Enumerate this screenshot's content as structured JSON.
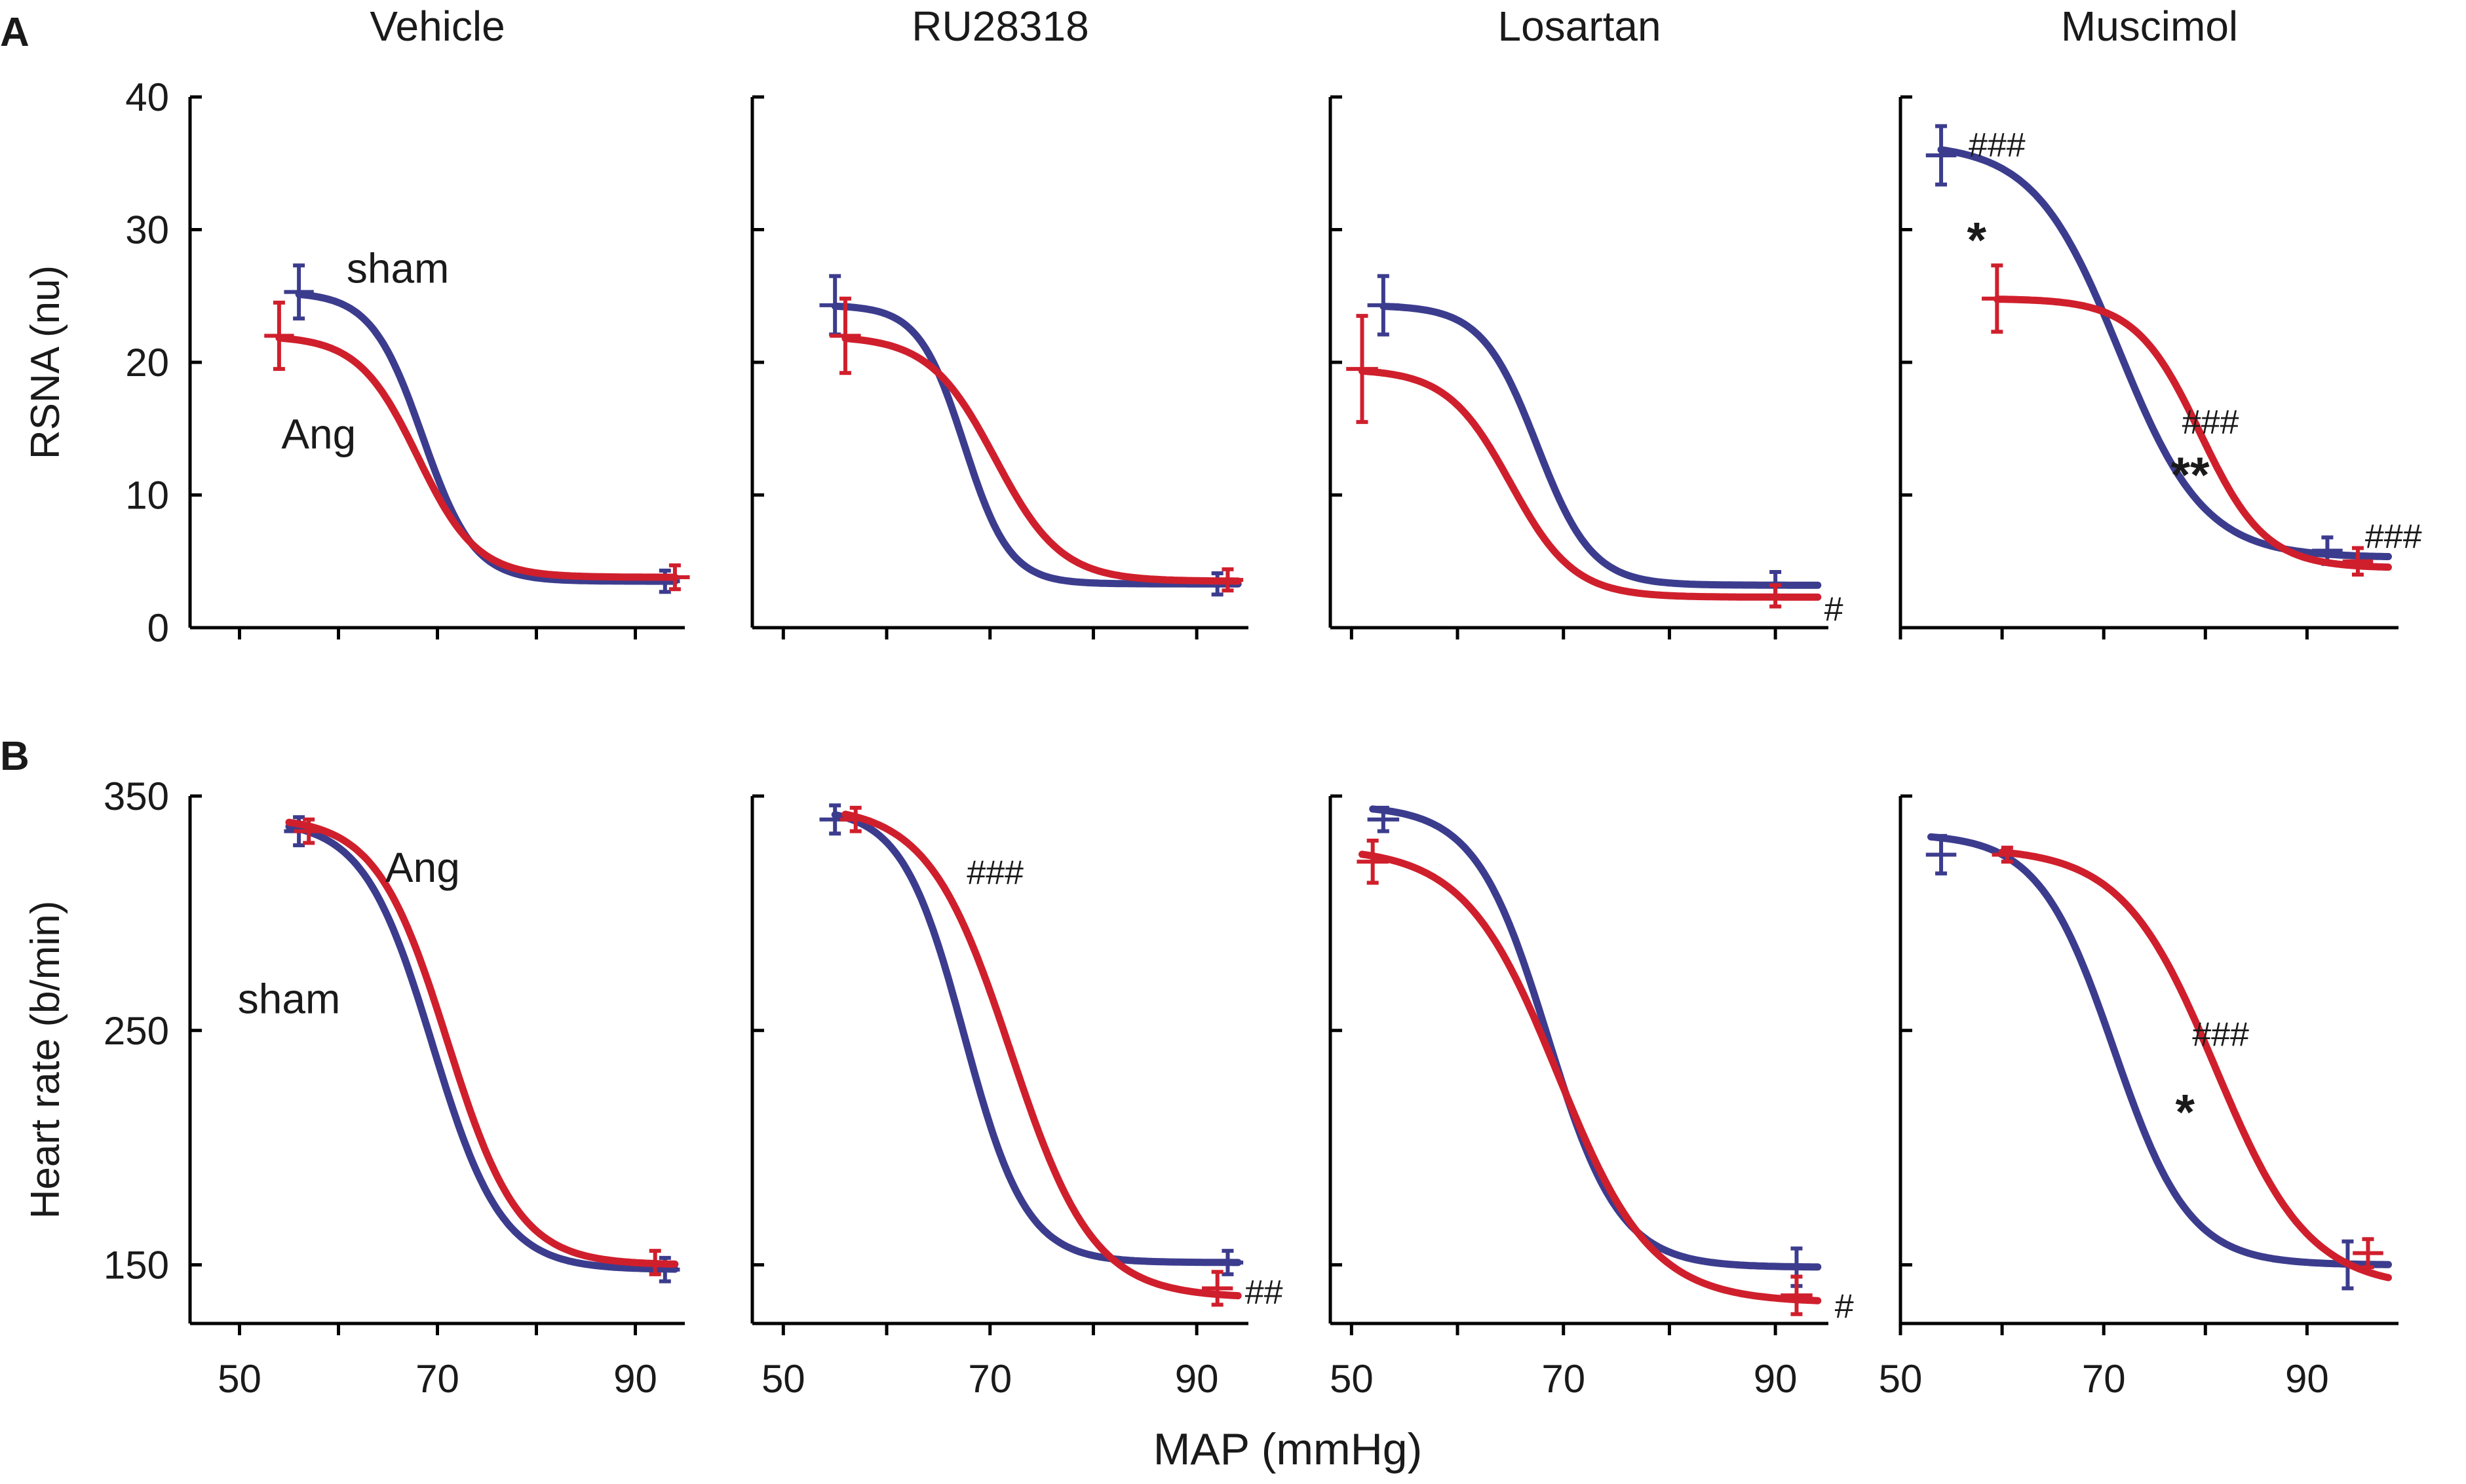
{
  "figure": {
    "x_axis_title": "MAP (mmHg)",
    "panel_letters": [
      "A",
      "B"
    ],
    "colors": {
      "sham": "#3c3c8e",
      "ang": "#d01f2c"
    }
  },
  "chart_data": [
    {
      "type": "line",
      "row": "A",
      "group": "Vehicle",
      "title": "Vehicle",
      "ylabel": "RSNA (nu)",
      "xlim": [
        45,
        95
      ],
      "ylim": [
        0,
        40
      ],
      "xticks": [
        50,
        70,
        90
      ],
      "xtick_minor": [
        60,
        80
      ],
      "yticks": [
        0,
        10,
        20,
        30,
        40
      ],
      "series": [
        {
          "name": "sham",
          "color": "#3c3c8e",
          "logistic": {
            "top": 25.3,
            "bottom": 3.5,
            "x50": 68.5,
            "slope": 2.6
          },
          "x_range": [
            56,
            94
          ],
          "points": [
            {
              "x": 56,
              "y": 25.3,
              "err": 2.0,
              "xerr": 1.5
            },
            {
              "x": 93,
              "y": 3.5,
              "err": 0.8,
              "xerr": 1.5
            }
          ]
        },
        {
          "name": "Ang",
          "color": "#d01f2c",
          "logistic": {
            "top": 22.0,
            "bottom": 3.8,
            "x50": 68.0,
            "slope": 3.0
          },
          "x_range": [
            54,
            94
          ],
          "points": [
            {
              "x": 54,
              "y": 22.0,
              "err": 2.5,
              "xerr": 1.5
            },
            {
              "x": 94,
              "y": 3.8,
              "err": 0.9,
              "xerr": 1.5
            }
          ]
        }
      ],
      "annotations": [
        {
          "text": "sham",
          "x": 66,
          "y": 27,
          "size": "label"
        },
        {
          "text": "Ang",
          "x": 58,
          "y": 14.5,
          "size": "label"
        }
      ]
    },
    {
      "type": "line",
      "row": "A",
      "group": "RU28318",
      "title": "RU28318",
      "ylabel": "",
      "xlim": [
        47,
        95
      ],
      "ylim": [
        0,
        40
      ],
      "xticks": [
        50,
        70,
        90
      ],
      "xtick_minor": [
        60,
        80
      ],
      "yticks": [
        0,
        10,
        20,
        30,
        40
      ],
      "series": [
        {
          "name": "sham",
          "color": "#3c3c8e",
          "logistic": {
            "top": 24.3,
            "bottom": 3.3,
            "x50": 67.5,
            "slope": 2.2
          },
          "x_range": [
            55,
            94
          ],
          "points": [
            {
              "x": 55,
              "y": 24.3,
              "err": 2.2,
              "xerr": 1.5
            },
            {
              "x": 92,
              "y": 3.3,
              "err": 0.8,
              "xerr": 1.5
            }
          ]
        },
        {
          "name": "Ang",
          "color": "#d01f2c",
          "logistic": {
            "top": 22.0,
            "bottom": 3.5,
            "x50": 70.5,
            "slope": 3.2
          },
          "x_range": [
            56,
            94
          ],
          "points": [
            {
              "x": 56,
              "y": 22.0,
              "err": 2.8,
              "xerr": 1.5
            },
            {
              "x": 93,
              "y": 3.6,
              "err": 0.8,
              "xerr": 1.5
            }
          ]
        }
      ],
      "annotations": []
    },
    {
      "type": "line",
      "row": "A",
      "group": "Losartan",
      "title": "Losartan",
      "ylabel": "",
      "xlim": [
        48,
        95
      ],
      "ylim": [
        0,
        40
      ],
      "xticks": [
        50,
        70,
        90
      ],
      "xtick_minor": [
        60,
        80
      ],
      "yticks": [
        0,
        10,
        20,
        30,
        40
      ],
      "series": [
        {
          "name": "sham",
          "color": "#3c3c8e",
          "logistic": {
            "top": 24.3,
            "bottom": 3.2,
            "x50": 67.5,
            "slope": 2.6
          },
          "x_range": [
            53,
            94
          ],
          "points": [
            {
              "x": 53,
              "y": 24.3,
              "err": 2.2,
              "xerr": 1.5
            },
            {
              "x": 90,
              "y": 3.2,
              "err": 1.0,
              "xerr": 1.5
            }
          ]
        },
        {
          "name": "Ang",
          "color": "#d01f2c",
          "logistic": {
            "top": 19.5,
            "bottom": 2.3,
            "x50": 65.0,
            "slope": 3.0
          },
          "x_range": [
            51,
            94
          ],
          "points": [
            {
              "x": 51,
              "y": 19.5,
              "err": 4.0,
              "xerr": 1.5
            },
            {
              "x": 90,
              "y": 2.4,
              "err": 0.8,
              "xerr": 1.5
            }
          ]
        }
      ],
      "annotations": [
        {
          "text": "#",
          "x": 95.5,
          "y": 1.5,
          "size": "mark"
        }
      ]
    },
    {
      "type": "line",
      "row": "A",
      "group": "Muscimol",
      "title": "Muscimol",
      "ylabel": "",
      "xlim": [
        50,
        99
      ],
      "ylim": [
        0,
        40
      ],
      "xticks": [
        50,
        70,
        90
      ],
      "xtick_minor": [
        60,
        80
      ],
      "yticks": [
        0,
        10,
        20,
        30,
        40
      ],
      "series": [
        {
          "name": "sham",
          "color": "#3c3c8e",
          "logistic": {
            "top": 36.5,
            "bottom": 5.3,
            "x50": 71.5,
            "slope": 4.2
          },
          "x_range": [
            54,
            98
          ],
          "points": [
            {
              "x": 54,
              "y": 35.6,
              "err": 2.2,
              "xerr": 1.5
            },
            {
              "x": 92,
              "y": 5.8,
              "err": 1.0,
              "xerr": 1.5
            }
          ]
        },
        {
          "name": "Ang",
          "color": "#d01f2c",
          "logistic": {
            "top": 24.8,
            "bottom": 4.5,
            "x50": 79.5,
            "slope": 3.2
          },
          "x_range": [
            59.5,
            98
          ],
          "points": [
            {
              "x": 59.5,
              "y": 24.8,
              "err": 2.5,
              "xerr": 1.5
            },
            {
              "x": 95,
              "y": 5.0,
              "err": 1.0,
              "xerr": 1.5
            }
          ]
        }
      ],
      "annotations": [
        {
          "text": "###",
          "x": 59.5,
          "y": 36.5,
          "size": "mark"
        },
        {
          "text": "*",
          "x": 57.5,
          "y": 29.7,
          "size": "star"
        },
        {
          "text": "###",
          "x": 80.5,
          "y": 15.6,
          "size": "mark"
        },
        {
          "text": "**",
          "x": 78.5,
          "y": 12.0,
          "size": "star"
        },
        {
          "text": "###",
          "x": 98.5,
          "y": 7.0,
          "size": "mark"
        }
      ]
    },
    {
      "type": "line",
      "row": "B",
      "group": "Vehicle",
      "title": "",
      "ylabel": "Heart rate (b/min)",
      "xlim": [
        45,
        95
      ],
      "ylim": [
        125,
        350
      ],
      "xticks": [
        50,
        70,
        90
      ],
      "xtick_minor": [
        60,
        80
      ],
      "yticks": [
        150,
        250,
        350
      ],
      "series": [
        {
          "name": "sham",
          "color": "#3c3c8e",
          "logistic": {
            "top": 340,
            "bottom": 148,
            "x50": 69.5,
            "slope": 3.5
          },
          "x_range": [
            55,
            94
          ],
          "points": [
            {
              "x": 56,
              "y": 335,
              "err": 6,
              "xerr": 1.5
            },
            {
              "x": 93,
              "y": 148,
              "err": 5,
              "xerr": 1.5
            }
          ]
        },
        {
          "name": "Ang",
          "color": "#d01f2c",
          "logistic": {
            "top": 341,
            "bottom": 150,
            "x50": 71.0,
            "slope": 3.6
          },
          "x_range": [
            55,
            94
          ],
          "points": [
            {
              "x": 57,
              "y": 335,
              "err": 5,
              "xerr": 1.5
            },
            {
              "x": 92,
              "y": 151,
              "err": 5,
              "xerr": 1.5
            }
          ]
        }
      ],
      "annotations": [
        {
          "text": "Ang",
          "x": 68.5,
          "y": 319,
          "size": "label"
        },
        {
          "text": "sham",
          "x": 55,
          "y": 263,
          "size": "label"
        }
      ]
    },
    {
      "type": "line",
      "row": "B",
      "group": "RU28318",
      "title": "",
      "ylabel": "",
      "xlim": [
        47,
        95
      ],
      "ylim": [
        125,
        350
      ],
      "xticks": [
        50,
        70,
        90
      ],
      "xtick_minor": [
        60,
        80
      ],
      "yticks": [
        150,
        250,
        350
      ],
      "series": [
        {
          "name": "sham",
          "color": "#3c3c8e",
          "logistic": {
            "top": 345,
            "bottom": 151,
            "x50": 67.5,
            "slope": 3.0
          },
          "x_range": [
            55,
            94
          ],
          "points": [
            {
              "x": 55,
              "y": 340,
              "err": 6,
              "xerr": 1.5
            },
            {
              "x": 93,
              "y": 151,
              "err": 5,
              "xerr": 1.5
            }
          ]
        },
        {
          "name": "Ang",
          "color": "#d01f2c",
          "logistic": {
            "top": 346,
            "bottom": 136,
            "x50": 72.0,
            "slope": 4.0
          },
          "x_range": [
            56,
            94
          ],
          "points": [
            {
              "x": 57,
              "y": 340,
              "err": 5,
              "xerr": 1.5
            },
            {
              "x": 92,
              "y": 140,
              "err": 7,
              "xerr": 1.5
            }
          ]
        }
      ],
      "annotations": [
        {
          "text": "###",
          "x": 70.5,
          "y": 318,
          "size": "mark"
        },
        {
          "text": "##",
          "x": 96.5,
          "y": 139,
          "size": "mark"
        }
      ]
    },
    {
      "type": "line",
      "row": "B",
      "group": "Losartan",
      "title": "",
      "ylabel": "",
      "xlim": [
        48,
        95
      ],
      "ylim": [
        125,
        350
      ],
      "xticks": [
        50,
        70,
        90
      ],
      "xtick_minor": [
        60,
        80
      ],
      "yticks": [
        150,
        250,
        350
      ],
      "series": [
        {
          "name": "sham",
          "color": "#3c3c8e",
          "logistic": {
            "top": 346,
            "bottom": 149,
            "x50": 68.5,
            "slope": 3.4
          },
          "x_range": [
            52,
            94
          ],
          "points": [
            {
              "x": 53,
              "y": 340,
              "err": 5,
              "xerr": 1.5
            },
            {
              "x": 92,
              "y": 149,
              "err": 8,
              "xerr": 1.5
            }
          ]
        },
        {
          "name": "Ang",
          "color": "#d01f2c",
          "logistic": {
            "top": 328,
            "bottom": 134,
            "x50": 69.5,
            "slope": 4.4
          },
          "x_range": [
            51,
            94
          ],
          "points": [
            {
              "x": 52,
              "y": 322,
              "err": 9,
              "xerr": 1.5
            },
            {
              "x": 92,
              "y": 137,
              "err": 8,
              "xerr": 1.5
            }
          ]
        }
      ],
      "annotations": [
        {
          "text": "#",
          "x": 96.5,
          "y": 133,
          "size": "mark"
        }
      ]
    },
    {
      "type": "line",
      "row": "B",
      "group": "Muscimol",
      "title": "",
      "ylabel": "",
      "xlim": [
        50,
        99
      ],
      "ylim": [
        125,
        350
      ],
      "xticks": [
        50,
        70,
        90
      ],
      "xtick_minor": [
        60,
        80
      ],
      "yticks": [
        150,
        250,
        350
      ],
      "series": [
        {
          "name": "sham",
          "color": "#3c3c8e",
          "logistic": {
            "top": 334,
            "bottom": 150,
            "x50": 71.0,
            "slope": 3.7
          },
          "x_range": [
            53,
            98
          ],
          "points": [
            {
              "x": 54,
              "y": 325,
              "err": 8,
              "xerr": 1.5
            },
            {
              "x": 94,
              "y": 150,
              "err": 10,
              "xerr": 1.5
            }
          ]
        },
        {
          "name": "Ang",
          "color": "#d01f2c",
          "logistic": {
            "top": 328,
            "bottom": 140,
            "x50": 81.0,
            "slope": 4.6
          },
          "x_range": [
            60,
            98
          ],
          "points": [
            {
              "x": 60.5,
              "y": 325,
              "err": 3,
              "xerr": 1.5
            },
            {
              "x": 96,
              "y": 155,
              "err": 6,
              "xerr": 1.5
            }
          ]
        }
      ],
      "annotations": [
        {
          "text": "###",
          "x": 81.5,
          "y": 249,
          "size": "mark"
        },
        {
          "text": "*",
          "x": 78,
          "y": 218,
          "size": "star"
        }
      ]
    }
  ]
}
